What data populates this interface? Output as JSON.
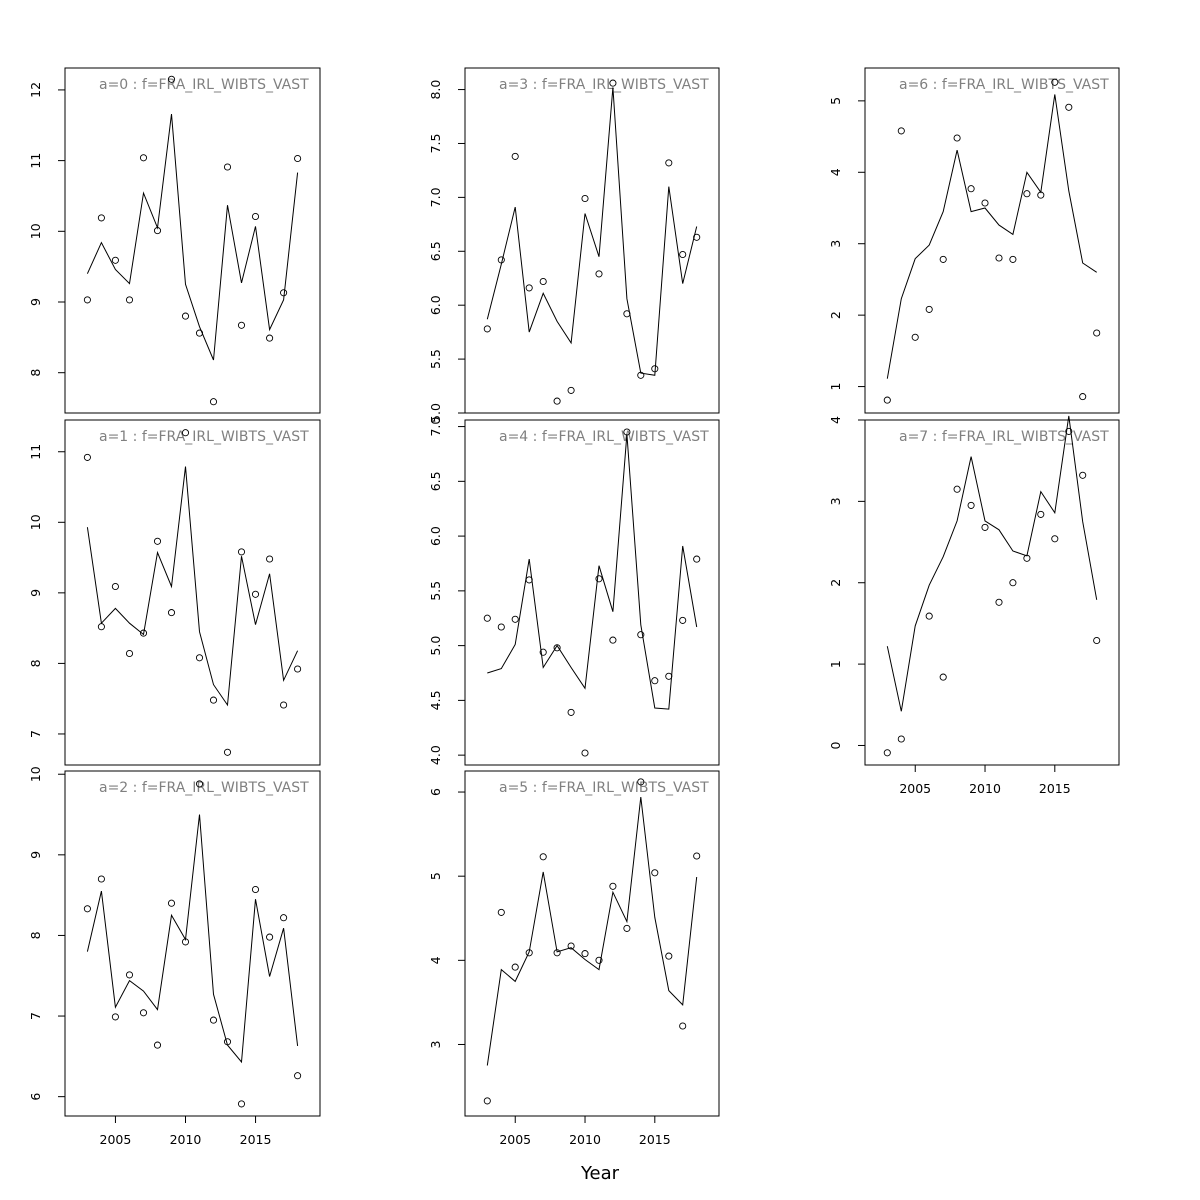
{
  "figure": {
    "xlabel": "Year"
  },
  "chart_data": [
    {
      "type": "scatter",
      "title": "a=0 : f=FRA_IRL_WIBTS_VAST",
      "x": [
        2003,
        2004,
        2005,
        2006,
        2007,
        2008,
        2009,
        2010,
        2011,
        2012,
        2013,
        2014,
        2015,
        2016,
        2017,
        2018
      ],
      "observed": [
        9.03,
        10.19,
        9.59,
        9.03,
        11.04,
        10.01,
        12.15,
        8.8,
        8.56,
        7.59,
        10.91,
        8.67,
        10.21,
        8.49,
        9.13,
        11.03
      ],
      "fitted": [
        9.4,
        9.84,
        9.46,
        9.26,
        10.54,
        10.05,
        11.66,
        9.25,
        8.65,
        8.18,
        10.37,
        9.27,
        10.07,
        8.61,
        9.03,
        10.83
      ],
      "xlim": [
        2001.4,
        2019.6
      ],
      "ylim": [
        7.43,
        12.31
      ],
      "xticks": [],
      "yticks": [
        8,
        9,
        10,
        11,
        12
      ]
    },
    {
      "type": "scatter",
      "title": "a=1 : f=FRA_IRL_WIBTS_VAST",
      "x": [
        2003,
        2004,
        2005,
        2006,
        2007,
        2008,
        2009,
        2010,
        2011,
        2012,
        2013,
        2014,
        2015,
        2016,
        2017,
        2018
      ],
      "observed": [
        10.92,
        8.52,
        9.09,
        8.14,
        8.43,
        9.73,
        8.72,
        11.27,
        8.08,
        7.48,
        6.74,
        9.58,
        8.98,
        9.48,
        7.41,
        7.92
      ],
      "fitted": [
        9.93,
        8.57,
        8.78,
        8.57,
        8.41,
        9.57,
        9.09,
        10.79,
        8.45,
        7.7,
        7.41,
        9.52,
        8.55,
        9.27,
        7.76,
        8.18
      ],
      "xlim": [
        2001.4,
        2019.6
      ],
      "ylim": [
        6.56,
        11.45
      ],
      "xticks": [],
      "yticks": [
        7,
        8,
        9,
        10,
        11
      ]
    },
    {
      "type": "scatter",
      "title": "a=2 : f=FRA_IRL_WIBTS_VAST",
      "x": [
        2003,
        2004,
        2005,
        2006,
        2007,
        2008,
        2009,
        2010,
        2011,
        2012,
        2013,
        2014,
        2015,
        2016,
        2017,
        2018
      ],
      "observed": [
        8.33,
        8.7,
        6.99,
        7.51,
        7.04,
        6.64,
        8.4,
        7.92,
        9.88,
        6.95,
        6.68,
        5.91,
        8.57,
        7.98,
        8.22,
        6.26
      ],
      "fitted": [
        7.8,
        8.55,
        7.11,
        7.44,
        7.31,
        7.08,
        8.25,
        7.95,
        9.5,
        7.27,
        6.64,
        6.43,
        8.45,
        7.49,
        8.09,
        6.63
      ],
      "xlim": [
        2001.4,
        2019.6
      ],
      "ylim": [
        5.76,
        10.04
      ],
      "xticks": [
        2005,
        2010,
        2015
      ],
      "yticks": [
        6,
        7,
        8,
        9,
        10
      ]
    },
    {
      "type": "scatter",
      "title": "a=3 : f=FRA_IRL_WIBTS_VAST",
      "x": [
        2003,
        2004,
        2005,
        2006,
        2007,
        2008,
        2009,
        2010,
        2011,
        2012,
        2013,
        2014,
        2015,
        2016,
        2017,
        2018
      ],
      "observed": [
        5.78,
        6.42,
        7.38,
        6.16,
        6.22,
        5.11,
        5.21,
        6.99,
        6.29,
        8.06,
        5.92,
        5.35,
        5.41,
        7.32,
        6.47,
        6.63
      ],
      "fitted": [
        5.87,
        6.38,
        6.91,
        5.75,
        6.11,
        5.85,
        5.65,
        6.85,
        6.45,
        8.02,
        6.06,
        5.37,
        5.35,
        7.1,
        6.2,
        6.73
      ],
      "xlim": [
        2001.4,
        2019.6
      ],
      "ylim": [
        5.0,
        8.2
      ],
      "xticks": [],
      "yticks": [
        5.0,
        5.5,
        6.0,
        6.5,
        7.0,
        7.5,
        8.0
      ],
      "yticklabels": [
        "5.0",
        "5.5",
        "6.0",
        "6.5",
        "7.0",
        "7.5",
        "8.0"
      ]
    },
    {
      "type": "scatter",
      "title": "a=4 : f=FRA_IRL_WIBTS_VAST",
      "x": [
        2003,
        2004,
        2005,
        2006,
        2007,
        2008,
        2009,
        2010,
        2011,
        2012,
        2013,
        2014,
        2015,
        2016,
        2017,
        2018
      ],
      "observed": [
        5.25,
        5.17,
        5.24,
        5.6,
        4.94,
        4.98,
        4.39,
        4.02,
        5.61,
        5.05,
        6.95,
        5.1,
        4.68,
        4.72,
        5.23,
        5.79
      ],
      "fitted": [
        4.75,
        4.79,
        5.01,
        5.79,
        4.8,
        5.0,
        4.8,
        4.61,
        5.73,
        5.31,
        6.93,
        5.19,
        4.43,
        4.42,
        5.91,
        5.17
      ],
      "xlim": [
        2001.4,
        2019.6
      ],
      "ylim": [
        3.91,
        7.06
      ],
      "xticks": [],
      "yticks": [
        4.0,
        4.5,
        5.0,
        5.5,
        6.0,
        6.5,
        7.0
      ],
      "yticklabels": [
        "4.0",
        "4.5",
        "5.0",
        "5.5",
        "6.0",
        "6.5",
        "7.0"
      ]
    },
    {
      "type": "scatter",
      "title": "a=5 : f=FRA_IRL_WIBTS_VAST",
      "x": [
        2003,
        2004,
        2005,
        2006,
        2007,
        2008,
        2009,
        2010,
        2011,
        2012,
        2013,
        2014,
        2015,
        2016,
        2017,
        2018
      ],
      "observed": [
        2.33,
        4.57,
        3.92,
        4.09,
        5.23,
        4.09,
        4.17,
        4.08,
        4.0,
        4.88,
        4.38,
        6.12,
        5.04,
        4.05,
        3.22,
        5.24
      ],
      "fitted": [
        2.75,
        3.89,
        3.75,
        4.1,
        5.05,
        4.1,
        4.15,
        4.01,
        3.89,
        4.81,
        4.46,
        5.94,
        4.51,
        3.64,
        3.47,
        4.99
      ],
      "xlim": [
        2001.4,
        2019.6
      ],
      "ylim": [
        2.15,
        6.25
      ],
      "xticks": [
        2005,
        2010,
        2015
      ],
      "yticks": [
        3,
        4,
        5,
        6
      ]
    },
    {
      "type": "scatter",
      "title": "a=6 : f=FRA_IRL_WIBTS_VAST",
      "x": [
        2003,
        2004,
        2005,
        2006,
        2007,
        2008,
        2009,
        2010,
        2011,
        2012,
        2013,
        2014,
        2015,
        2016,
        2017,
        2018
      ],
      "observed": [
        0.81,
        4.58,
        1.69,
        2.08,
        2.78,
        4.48,
        3.77,
        3.57,
        2.8,
        2.78,
        3.7,
        3.68,
        5.26,
        4.91,
        0.86,
        1.75
      ],
      "fitted": [
        1.11,
        2.23,
        2.79,
        2.98,
        3.45,
        4.31,
        3.45,
        3.5,
        3.26,
        3.13,
        4.0,
        3.72,
        5.09,
        3.74,
        2.73,
        2.6
      ],
      "xlim": [
        2001.4,
        2019.6
      ],
      "ylim": [
        0.63,
        5.46
      ],
      "xticks": [],
      "yticks": [
        1,
        2,
        3,
        4,
        5
      ]
    },
    {
      "type": "scatter",
      "title": "a=7 : f=FRA_IRL_WIBTS_VAST",
      "x": [
        2003,
        2004,
        2005,
        2006,
        2007,
        2008,
        2009,
        2010,
        2011,
        2012,
        2013,
        2014,
        2015,
        2016,
        2017,
        2018
      ],
      "observed": [
        -0.09,
        0.08,
        null,
        1.59,
        0.84,
        3.15,
        2.95,
        2.68,
        1.76,
        2.0,
        2.3,
        2.84,
        2.54,
        3.86,
        3.32,
        1.29
      ],
      "fitted": [
        1.22,
        0.42,
        1.47,
        1.97,
        2.32,
        2.76,
        3.55,
        2.76,
        2.65,
        2.39,
        2.33,
        3.12,
        2.86,
        4.05,
        2.75,
        1.79
      ],
      "xlim": [
        2001.4,
        2019.6
      ],
      "ylim": [
        -0.24,
        4.0
      ],
      "xticks": [
        2005,
        2010,
        2015
      ],
      "yticks": [
        0,
        1,
        2,
        3,
        4
      ]
    }
  ]
}
